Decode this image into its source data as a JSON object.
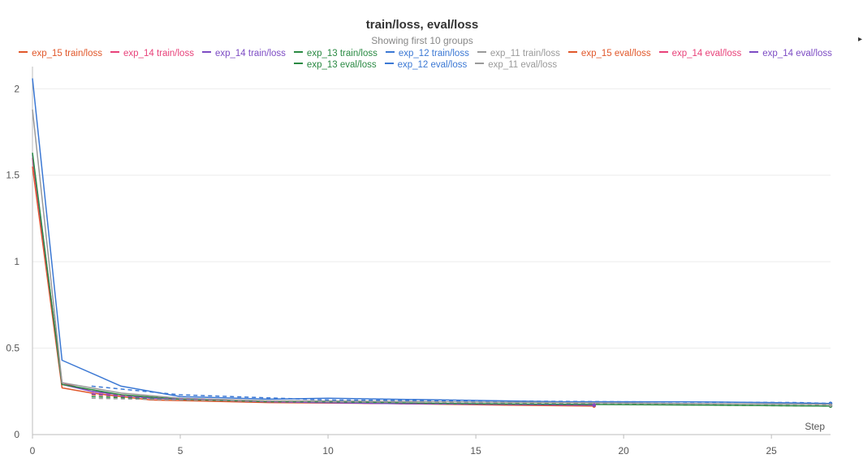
{
  "chart_data": {
    "type": "line",
    "title": "train/loss, eval/loss",
    "subtitle": "Showing first 10 groups",
    "xlabel": "Step",
    "ylabel": "",
    "xlim": [
      0,
      27
    ],
    "ylim": [
      0,
      2.1
    ],
    "xticks": [
      0,
      5,
      10,
      15,
      20,
      25
    ],
    "yticks": [
      0,
      0.5,
      1,
      1.5,
      2
    ],
    "ytick_labels": [
      "0",
      "0.5",
      "1",
      "1.5",
      "2"
    ],
    "grid": true,
    "legend_position": "top",
    "series": [
      {
        "name": "exp_15 train/loss",
        "color": "#e1582b",
        "style": "solid",
        "x": [
          0,
          1,
          2,
          4,
          8,
          12,
          16,
          19
        ],
        "y": [
          1.55,
          0.27,
          0.24,
          0.2,
          0.185,
          0.18,
          0.17,
          0.165
        ]
      },
      {
        "name": "exp_14 train/loss",
        "color": "#e8427a",
        "style": "solid",
        "x": [
          0,
          1,
          2,
          4,
          8,
          12,
          16,
          19
        ],
        "y": [
          1.6,
          0.3,
          0.25,
          0.21,
          0.19,
          0.18,
          0.175,
          0.17
        ]
      },
      {
        "name": "exp_14 train/loss",
        "color": "#7d4cc4",
        "style": "solid",
        "x": [
          0,
          1,
          2,
          4,
          8,
          12,
          16,
          19
        ],
        "y": [
          1.62,
          0.29,
          0.25,
          0.21,
          0.19,
          0.18,
          0.175,
          0.17
        ]
      },
      {
        "name": "exp_13 train/loss",
        "color": "#2a8a43",
        "style": "solid",
        "x": [
          0,
          1,
          3,
          5,
          8,
          10,
          14,
          18,
          23,
          27
        ],
        "y": [
          1.63,
          0.29,
          0.23,
          0.205,
          0.19,
          0.19,
          0.18,
          0.175,
          0.17,
          0.165
        ]
      },
      {
        "name": "exp_12 train/loss",
        "color": "#3b78d4",
        "style": "solid",
        "x": [
          0,
          1,
          3,
          5,
          8,
          10,
          14,
          18,
          22,
          25,
          27
        ],
        "y": [
          2.06,
          0.43,
          0.28,
          0.22,
          0.205,
          0.21,
          0.2,
          0.19,
          0.19,
          0.185,
          0.18
        ]
      },
      {
        "name": "exp_11 train/loss",
        "color": "#9a9a9a",
        "style": "solid",
        "x": [
          0,
          1,
          3,
          5,
          8,
          10,
          14,
          18,
          22,
          27
        ],
        "y": [
          1.88,
          0.3,
          0.24,
          0.21,
          0.195,
          0.195,
          0.19,
          0.185,
          0.18,
          0.175
        ]
      },
      {
        "name": "exp_15 eval/loss",
        "color": "#e1582b",
        "style": "dash",
        "x": [
          2,
          4,
          8,
          12,
          16,
          19
        ],
        "y": [
          0.23,
          0.21,
          0.19,
          0.18,
          0.175,
          0.17
        ]
      },
      {
        "name": "exp_14 eval/loss",
        "color": "#e8427a",
        "style": "dash",
        "x": [
          2,
          4,
          8,
          12,
          16,
          19
        ],
        "y": [
          0.24,
          0.21,
          0.19,
          0.18,
          0.175,
          0.17
        ]
      },
      {
        "name": "exp_14 eval/loss",
        "color": "#7d4cc4",
        "style": "dash",
        "x": [
          2,
          4,
          8,
          12,
          16,
          19
        ],
        "y": [
          0.235,
          0.21,
          0.19,
          0.18,
          0.175,
          0.17
        ]
      },
      {
        "name": "exp_13 eval/loss",
        "color": "#2a8a43",
        "style": "dash",
        "x": [
          2,
          5,
          10,
          15,
          20,
          23,
          27
        ],
        "y": [
          0.22,
          0.2,
          0.19,
          0.18,
          0.175,
          0.17,
          0.165
        ]
      },
      {
        "name": "exp_12 eval/loss",
        "color": "#3b78d4",
        "style": "dash",
        "x": [
          2,
          5,
          10,
          15,
          20,
          26,
          27
        ],
        "y": [
          0.28,
          0.23,
          0.2,
          0.195,
          0.19,
          0.185,
          0.18
        ]
      },
      {
        "name": "exp_11 eval/loss",
        "color": "#9a9a9a",
        "style": "dash",
        "x": [
          2,
          5,
          10,
          15,
          20,
          26,
          27
        ],
        "y": [
          0.21,
          0.2,
          0.19,
          0.185,
          0.18,
          0.175,
          0.17
        ]
      }
    ]
  }
}
